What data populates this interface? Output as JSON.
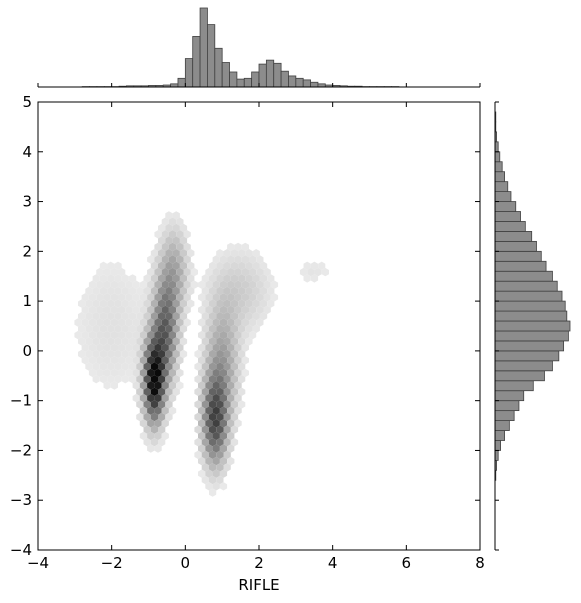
{
  "chart_data": {
    "type": "joint-hexbin",
    "x_label": "RIFLE",
    "y_label": "",
    "xlim": [
      -4,
      8
    ],
    "ylim": [
      -4,
      5
    ],
    "x_ticks": [
      "−4",
      "−2",
      "0",
      "2",
      "4",
      "6",
      "8"
    ],
    "y_ticks": [
      "−4",
      "−3",
      "−2",
      "−1",
      "0",
      "1",
      "2",
      "3",
      "4",
      "5"
    ],
    "x_tick_values": [
      -4,
      -2,
      0,
      2,
      4,
      6,
      8
    ],
    "y_tick_values": [
      -4,
      -3,
      -2,
      -1,
      0,
      1,
      2,
      3,
      4,
      5
    ],
    "colormap": "Greys",
    "hist_color": "#8c8c8c",
    "density_clusters": [
      {
        "cx": -0.85,
        "cy": -0.6,
        "sx": 0.18,
        "sy": 0.55,
        "weight": 1.0
      },
      {
        "cx": -0.55,
        "cy": 0.4,
        "sx": 0.22,
        "sy": 0.7,
        "weight": 0.55
      },
      {
        "cx": -0.3,
        "cy": 1.6,
        "sx": 0.25,
        "sy": 0.6,
        "weight": 0.25
      },
      {
        "cx": 0.8,
        "cy": -1.4,
        "sx": 0.22,
        "sy": 0.6,
        "weight": 0.65
      },
      {
        "cx": 1.0,
        "cy": -0.3,
        "sx": 0.3,
        "sy": 0.8,
        "weight": 0.3
      },
      {
        "cx": 1.5,
        "cy": 1.2,
        "sx": 0.6,
        "sy": 0.6,
        "weight": 0.12
      },
      {
        "cx": -2.0,
        "cy": 0.5,
        "sx": 0.9,
        "sy": 1.2,
        "weight": 0.06
      },
      {
        "cx": 3.5,
        "cy": 1.6,
        "sx": 0.4,
        "sy": 0.2,
        "weight": 0.05
      }
    ],
    "marginal_x": {
      "bin_start": -4.0,
      "bin_width": 0.2,
      "counts": [
        0,
        0,
        0,
        0,
        0,
        0,
        1,
        1,
        1,
        1,
        1,
        2,
        3,
        3,
        3,
        4,
        4,
        5,
        8,
        22,
        72,
        128,
        200,
        158,
        98,
        62,
        38,
        20,
        22,
        38,
        58,
        68,
        60,
        40,
        28,
        22,
        18,
        12,
        8,
        5,
        4,
        3,
        2,
        2,
        1,
        1,
        1,
        1,
        1,
        0,
        0,
        0,
        0,
        0,
        0,
        0,
        0,
        0,
        0,
        0
      ]
    },
    "marginal_y": {
      "bin_start": -4.0,
      "bin_width": 0.2,
      "counts": [
        0,
        0,
        0,
        0,
        0,
        0,
        0,
        1,
        2,
        4,
        7,
        12,
        18,
        24,
        30,
        36,
        48,
        62,
        72,
        80,
        86,
        92,
        94,
        90,
        88,
        84,
        78,
        72,
        64,
        58,
        52,
        46,
        38,
        32,
        26,
        20,
        16,
        12,
        9,
        6,
        4,
        2,
        1,
        1,
        0,
        0
      ]
    }
  }
}
